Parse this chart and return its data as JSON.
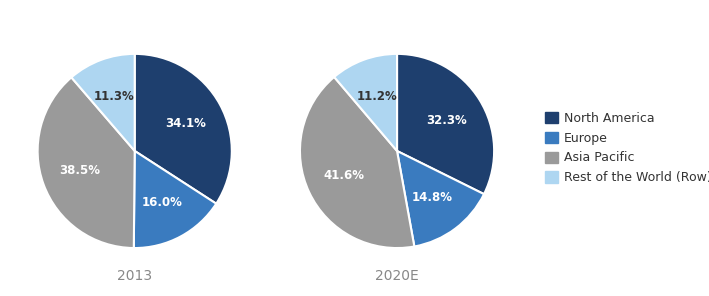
{
  "chart2013": {
    "label": "2013",
    "values": [
      34.1,
      16.0,
      38.5,
      11.3
    ],
    "startangle": 90
  },
  "chart2020": {
    "label": "2020E",
    "values": [
      32.3,
      14.8,
      41.6,
      11.2
    ],
    "startangle": 90
  },
  "categories": [
    "North America",
    "Europe",
    "Asia Pacific",
    "Rest of the World (Row)"
  ],
  "colors": [
    "#1e3f6e",
    "#3a7bbf",
    "#9a9a9a",
    "#aed6f1"
  ],
  "label_fontsize": 8.5,
  "legend_fontsize": 9,
  "sublabel_fontsize": 10,
  "background_color": "#ffffff",
  "text_color": "#888888",
  "label_colors": [
    "white",
    "white",
    "white",
    "#333333"
  ]
}
